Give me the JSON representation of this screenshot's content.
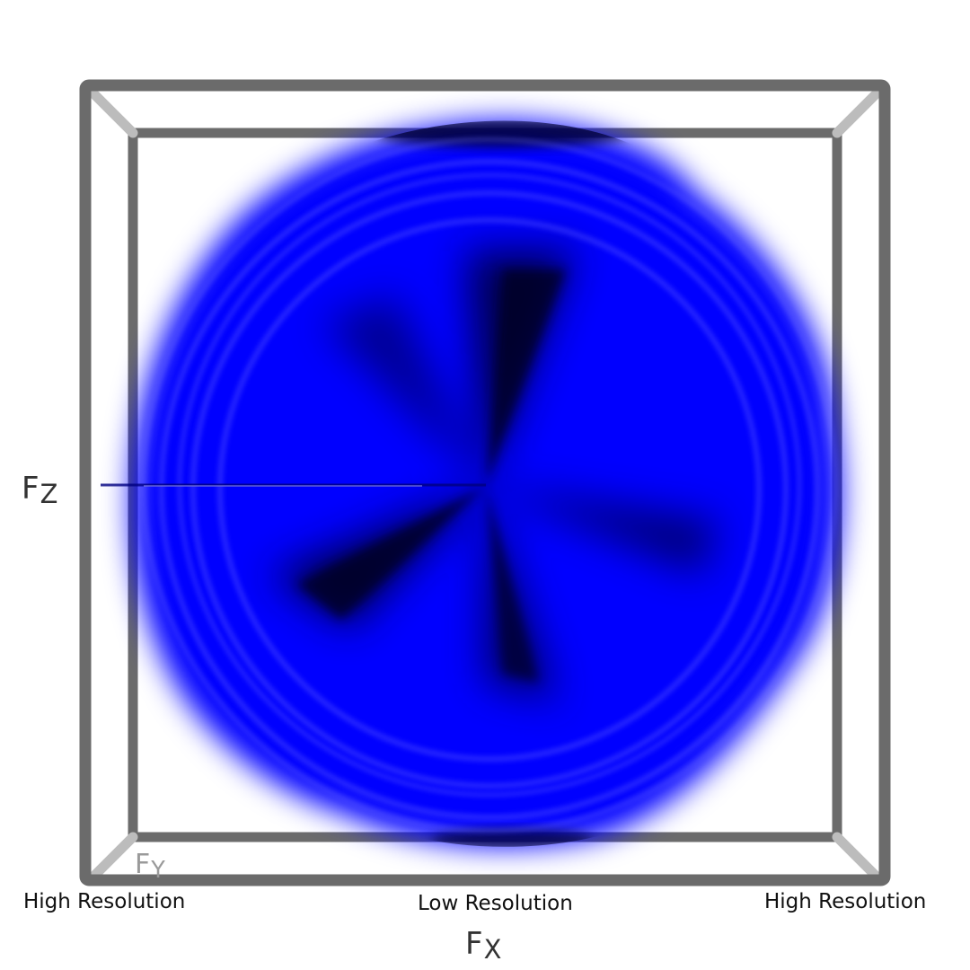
{
  "axes": {
    "x": {
      "main": "F",
      "sub": "X"
    },
    "y": {
      "main": "F",
      "sub": "Y"
    },
    "z": {
      "main": "F",
      "sub": "Z"
    }
  },
  "resolution_labels": {
    "left": "High Resolution",
    "center": "Low Resolution",
    "right": "High Resolution"
  },
  "colors": {
    "volume": "#0000ff",
    "volume_dark": "#000040",
    "frame_front": "#6b6b6b",
    "frame_back_edges": "#bcbcbc"
  }
}
